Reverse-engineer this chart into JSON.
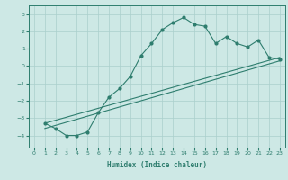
{
  "xlabel": "Humidex (Indice chaleur)",
  "ylabel": "",
  "bg_color": "#cde8e5",
  "grid_color": "#aacfcc",
  "line_color": "#2e7d6e",
  "xlim": [
    -0.5,
    23.5
  ],
  "ylim": [
    -4.7,
    3.5
  ],
  "xticks": [
    0,
    1,
    2,
    3,
    4,
    5,
    6,
    7,
    8,
    9,
    10,
    11,
    12,
    13,
    14,
    15,
    16,
    17,
    18,
    19,
    20,
    21,
    22,
    23
  ],
  "yticks": [
    -4,
    -3,
    -2,
    -1,
    0,
    1,
    2,
    3
  ],
  "curve1_x": [
    1,
    2,
    3,
    4,
    5,
    6,
    7,
    8,
    9,
    10,
    11,
    12,
    13,
    14,
    15,
    16,
    17,
    18,
    19,
    20,
    21,
    22,
    23
  ],
  "curve1_y": [
    -3.3,
    -3.6,
    -4.0,
    -4.0,
    -3.8,
    -2.7,
    -1.8,
    -1.3,
    -0.6,
    0.6,
    1.3,
    2.1,
    2.5,
    2.8,
    2.4,
    2.3,
    1.3,
    1.7,
    1.3,
    1.1,
    1.5,
    0.5,
    0.4
  ],
  "line2_x": [
    1,
    23
  ],
  "line2_y": [
    -3.3,
    0.5
  ],
  "line3_x": [
    1,
    23
  ],
  "line3_y": [
    -3.6,
    0.3
  ]
}
